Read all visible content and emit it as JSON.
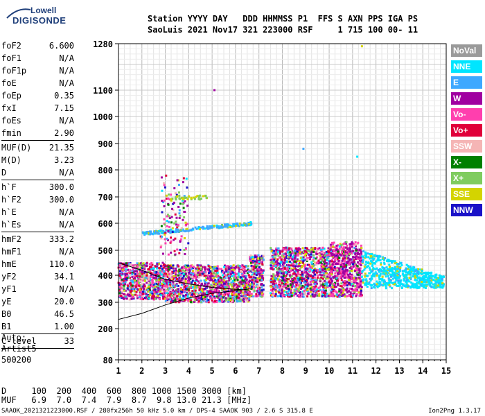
{
  "logo": {
    "top": "Lowell",
    "bottom": "DIGISONDE"
  },
  "header": {
    "line1": "Station YYYY DAY   DDD HHMMSS P1  FFS S AXN PPS IGA PS",
    "line2": "SaoLuis 2021 Nov17 321 223000 RSF     1 715 100 00- 11"
  },
  "parameters": {
    "group1": [
      {
        "name": "foF2",
        "value": "6.600"
      },
      {
        "name": "foF1",
        "value": "N/A"
      },
      {
        "name": "foF1p",
        "value": "N/A"
      },
      {
        "name": "foE",
        "value": "N/A"
      },
      {
        "name": "foEp",
        "value": "0.35"
      },
      {
        "name": "fxI",
        "value": "7.15"
      },
      {
        "name": "foEs",
        "value": "N/A"
      },
      {
        "name": "fmin",
        "value": "2.90"
      }
    ],
    "group2": [
      {
        "name": "MUF(D)",
        "value": "21.35"
      },
      {
        "name": "M(D)",
        "value": "3.23"
      },
      {
        "name": "D",
        "value": "N/A"
      }
    ],
    "group3": [
      {
        "name": "h`F",
        "value": "300.0"
      },
      {
        "name": "h`F2",
        "value": "300.0"
      },
      {
        "name": "h`E",
        "value": "N/A"
      },
      {
        "name": "h`Es",
        "value": "N/A"
      }
    ],
    "group4": [
      {
        "name": "hmF2",
        "value": "333.2"
      },
      {
        "name": "hmF1",
        "value": "N/A"
      },
      {
        "name": "hmE",
        "value": "110.0"
      },
      {
        "name": "yF2",
        "value": "34.1"
      },
      {
        "name": "yF1",
        "value": "N/A"
      },
      {
        "name": "yE",
        "value": "20.0"
      },
      {
        "name": "B0",
        "value": "46.5"
      },
      {
        "name": "B1",
        "value": "1.00"
      }
    ],
    "group5": [
      {
        "name": "C-level",
        "value": "33"
      }
    ]
  },
  "auto": {
    "line1": "Auto:",
    "line2": "Artist5",
    "line3": "500200"
  },
  "legend": [
    {
      "label": "NoVal",
      "color": "#9a9a9a"
    },
    {
      "label": "NNE",
      "color": "#00e5ff"
    },
    {
      "label": "E",
      "color": "#3ea8ff"
    },
    {
      "label": "W",
      "color": "#a000a0"
    },
    {
      "label": "Vo-",
      "color": "#ff3fae"
    },
    {
      "label": "Vo+",
      "color": "#e0003a"
    },
    {
      "label": "SSW",
      "color": "#f5b5b5"
    },
    {
      "label": "X-",
      "color": "#008000"
    },
    {
      "label": "X+",
      "color": "#7fcc5f"
    },
    {
      "label": "SSE",
      "color": "#d4d400"
    },
    {
      "label": "NNW",
      "color": "#1a12c8"
    }
  ],
  "footer": {
    "d_row": "D     100  200  400  600  800 1000 1500 3000 [km]",
    "muf_row": "MUF   6.9  7.0  7.4  7.9  8.7  9.8 13.0 21.3 [MHz]",
    "info": "SAAOK_2021321223000.RSF / 280fx256h 50 kHz 5.0 km / DPS-4 SAAOK 903 / 2.6 S 315.8 E",
    "version": "Ion2Png 1.3.17"
  },
  "chart_data": {
    "type": "scatter",
    "x_ticks": [
      "1",
      "2",
      "3",
      "4",
      "5",
      "6",
      "7",
      "8",
      "9",
      "10",
      "11",
      "12",
      "13",
      "14",
      "15"
    ],
    "y_ticks": [
      "80",
      "200",
      "300",
      "400",
      "500",
      "600",
      "700",
      "800",
      "900",
      "1000",
      "1100",
      "1280"
    ],
    "xlim": [
      1,
      15
    ],
    "ylim": [
      80,
      1280
    ],
    "y_scale": "nonlinear-stretched",
    "grid": true,
    "traces": [
      {
        "name": "F2 O-trace band",
        "x_range": [
          1.0,
          7.2
        ],
        "h_range": [
          300,
          460
        ]
      },
      {
        "name": "F2 X-trace band",
        "x_range": [
          7.5,
          11.4
        ],
        "h_range": [
          320,
          520
        ]
      },
      {
        "name": "cyan echoes",
        "x_range": [
          11.4,
          14.9
        ],
        "h_range": [
          350,
          500
        ]
      },
      {
        "name": "second hop",
        "x_range": [
          2.0,
          6.6
        ],
        "h_range": [
          555,
          600
        ]
      }
    ],
    "profile": [
      {
        "x": 1.0,
        "h": 235
      },
      {
        "x": 2.0,
        "h": 258
      },
      {
        "x": 3.0,
        "h": 290
      },
      {
        "x": 4.0,
        "h": 316
      },
      {
        "x": 5.0,
        "h": 333
      },
      {
        "x": 6.0,
        "h": 343
      },
      {
        "x": 6.6,
        "h": 350
      }
    ],
    "trace_line": [
      {
        "x": 1.0,
        "h": 450
      },
      {
        "x": 2.0,
        "h": 420
      },
      {
        "x": 3.0,
        "h": 385
      },
      {
        "x": 4.0,
        "h": 368
      },
      {
        "x": 5.0,
        "h": 355
      },
      {
        "x": 6.0,
        "h": 348
      },
      {
        "x": 6.6,
        "h": 345
      }
    ]
  }
}
